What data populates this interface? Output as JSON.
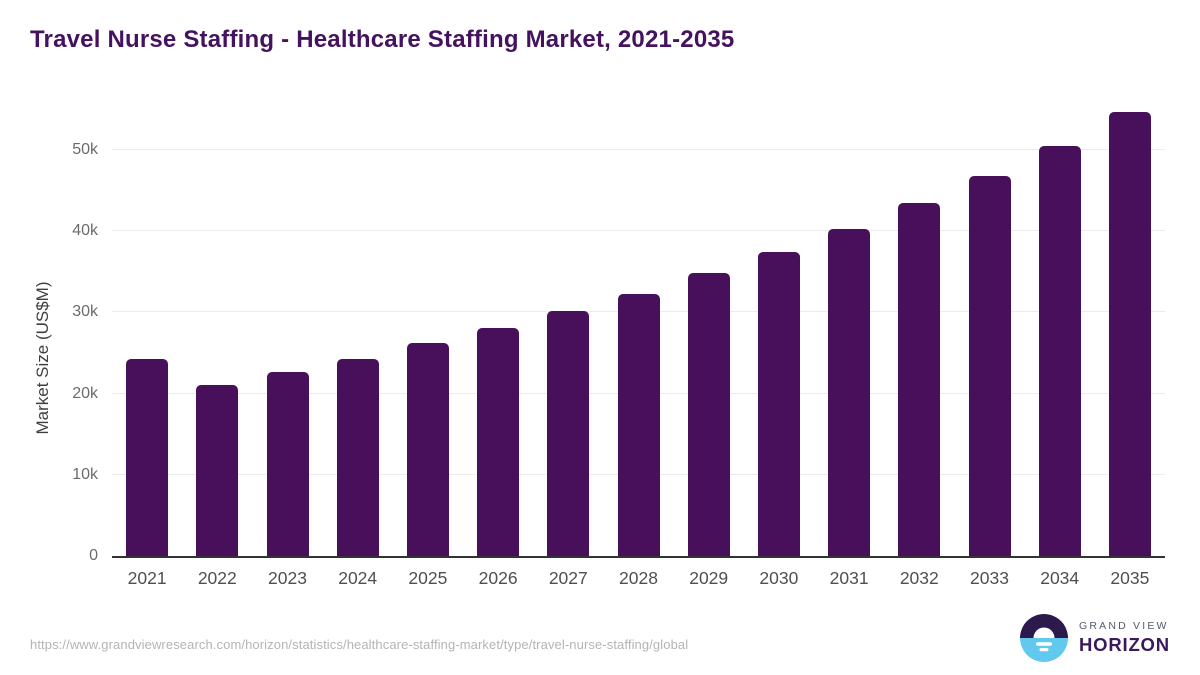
{
  "page": {
    "title": "Travel Nurse Staffing - Healthcare Staffing Market, 2021-2035"
  },
  "chart_data": {
    "type": "bar",
    "title": "Travel Nurse Staffing - Healthcare Staffing Market, 2021-2035",
    "categories": [
      "2021",
      "2022",
      "2023",
      "2024",
      "2025",
      "2026",
      "2027",
      "2028",
      "2029",
      "2030",
      "2031",
      "2032",
      "2033",
      "2034",
      "2035"
    ],
    "values": [
      24300,
      21100,
      22700,
      24300,
      26200,
      28100,
      30100,
      32300,
      34800,
      37400,
      40200,
      43400,
      46800,
      50500,
      54700
    ],
    "xlabel": "",
    "ylabel": "Market Size (US$M)",
    "ylim": [
      0,
      56740
    ],
    "yticks": [
      {
        "value": 0,
        "label": "0"
      },
      {
        "value": 10000,
        "label": "10k"
      },
      {
        "value": 20000,
        "label": "20k"
      },
      {
        "value": 30000,
        "label": "30k"
      },
      {
        "value": 40000,
        "label": "40k"
      },
      {
        "value": 50000,
        "label": "50k"
      }
    ],
    "grid": true,
    "legend": "none",
    "bar_color": "#48105A",
    "gridline_color": "#ebebeb",
    "axis_line_color": "#333333"
  },
  "footer": {
    "source_url": "https://www.grandviewresearch.com/horizon/statistics/healthcare-staffing-market/type/travel-nurse-staffing/global",
    "logo": {
      "line1": "GRAND VIEW",
      "line2": "HORIZON",
      "mark_top_color": "#2C1A4D",
      "mark_bottom_color": "#62C9EE"
    }
  }
}
